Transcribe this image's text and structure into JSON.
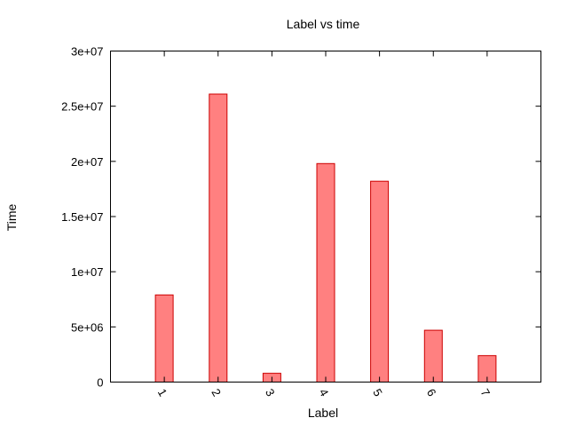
{
  "chart_data": {
    "type": "bar",
    "title": "Label vs time",
    "xlabel": "Label",
    "ylabel": "Time",
    "categories": [
      "1",
      "2",
      "3",
      "4",
      "5",
      "6",
      "7"
    ],
    "values": [
      7900000,
      26100000,
      800000,
      19800000,
      18200000,
      4700000,
      2400000
    ],
    "ylim": [
      0,
      30000000
    ],
    "yticks": [
      0,
      5000000,
      10000000,
      15000000,
      20000000,
      25000000,
      30000000
    ],
    "ytick_labels": [
      "0",
      "5e+06",
      "1e+07",
      "1.5e+07",
      "2e+07",
      "2.5e+07",
      "3e+07"
    ],
    "xlim": [
      0,
      8
    ],
    "grid": false,
    "legend": "none",
    "bar_fill_color": "#ff8080",
    "bar_edge_color": "#cc0000"
  }
}
